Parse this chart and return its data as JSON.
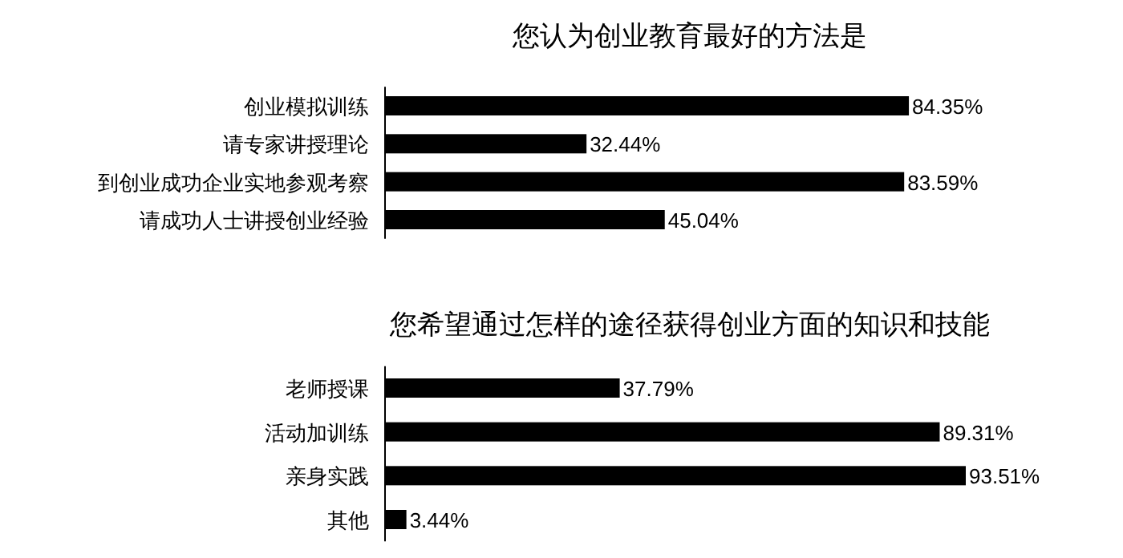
{
  "chart_data": [
    {
      "type": "bar",
      "orientation": "horizontal",
      "title": "您认为创业教育最好的方法是",
      "categories": [
        "创业模拟训练",
        "请专家讲授理论",
        "到创业成功企业实地参观考察",
        "请成功人士讲授创业经验"
      ],
      "values": [
        84.35,
        32.44,
        83.59,
        45.04
      ],
      "value_labels": [
        "84.35%",
        "32.44%",
        "83.59%",
        "45.04%"
      ],
      "color": "#000000"
    },
    {
      "type": "bar",
      "orientation": "horizontal",
      "title": "您希望通过怎样的途径获得创业方面的知识和技能",
      "categories": [
        "老师授课",
        "活动加训练",
        "亲身实践",
        "其他"
      ],
      "values": [
        37.79,
        89.31,
        93.51,
        3.44
      ],
      "value_labels": [
        "37.79%",
        "89.31%",
        "93.51%",
        "3.44%"
      ],
      "color": "#000000"
    }
  ]
}
